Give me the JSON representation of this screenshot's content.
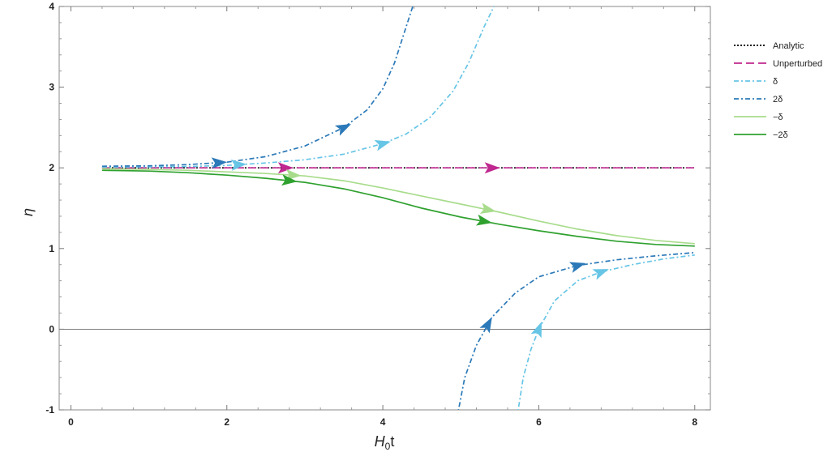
{
  "chart_data": {
    "type": "line",
    "xlabel": "H",
    "xlabel_sub": "0",
    "xlabel_tail": "t",
    "ylabel": "η",
    "xlim": [
      -0.15,
      8.2
    ],
    "ylim": [
      -1,
      4
    ],
    "x_ticks": [
      "0",
      "2",
      "4",
      "6",
      "8"
    ],
    "y_ticks": [
      "-1",
      "0",
      "1",
      "2",
      "3",
      "4"
    ],
    "x_tick_values": [
      0,
      2,
      4,
      6,
      8
    ],
    "y_tick_values": [
      -1,
      0,
      1,
      2,
      3,
      4
    ],
    "legend_position": "right",
    "reference_line_y": 0,
    "series": [
      {
        "name": "Analytic",
        "color": "#000000",
        "dash": "2,2",
        "segments": [
          [
            [
              0.4,
              2.0
            ],
            [
              8.0,
              2.0
            ]
          ]
        ],
        "arrows": []
      },
      {
        "name": "Unperturbed",
        "color": "#c0278f",
        "dash": "10,5",
        "segments": [
          [
            [
              0.4,
              2.0
            ],
            [
              8.0,
              2.0
            ]
          ]
        ],
        "arrows": [
          2.75,
          5.4
        ]
      },
      {
        "name": "δ",
        "color": "#67c5e6",
        "dash": "6,3,2,3",
        "segments": [
          [
            [
              0.4,
              2.01
            ],
            [
              1.0,
              2.012
            ],
            [
              1.5,
              2.016
            ],
            [
              2.0,
              2.03
            ],
            [
              2.5,
              2.06
            ],
            [
              3.0,
              2.1
            ],
            [
              3.5,
              2.17
            ],
            [
              4.0,
              2.3
            ],
            [
              4.3,
              2.42
            ],
            [
              4.6,
              2.62
            ],
            [
              4.9,
              2.95
            ],
            [
              5.1,
              3.3
            ],
            [
              5.3,
              3.75
            ],
            [
              5.45,
              4.05
            ]
          ],
          [
            [
              5.72,
              -1.1
            ],
            [
              5.8,
              -0.6
            ],
            [
              5.9,
              -0.25
            ],
            [
              6.0,
              0.0
            ],
            [
              6.2,
              0.35
            ],
            [
              6.5,
              0.6
            ],
            [
              6.8,
              0.71
            ],
            [
              7.2,
              0.8
            ],
            [
              7.6,
              0.87
            ],
            [
              8.0,
              0.92
            ]
          ]
        ],
        "arrows": [
          2.15,
          4.0,
          6.0,
          6.8
        ]
      },
      {
        "name": "2δ",
        "color": "#2b79b8",
        "dash": "6,3,2,3",
        "segments": [
          [
            [
              0.4,
              2.02
            ],
            [
              1.0,
              2.025
            ],
            [
              1.5,
              2.04
            ],
            [
              2.0,
              2.07
            ],
            [
              2.5,
              2.14
            ],
            [
              3.0,
              2.27
            ],
            [
              3.5,
              2.5
            ],
            [
              3.8,
              2.72
            ],
            [
              4.0,
              2.98
            ],
            [
              4.15,
              3.3
            ],
            [
              4.3,
              3.75
            ],
            [
              4.4,
              4.05
            ]
          ],
          [
            [
              4.95,
              -1.1
            ],
            [
              5.05,
              -0.6
            ],
            [
              5.2,
              -0.2
            ],
            [
              5.4,
              0.15
            ],
            [
              5.7,
              0.45
            ],
            [
              6.0,
              0.65
            ],
            [
              6.5,
              0.79
            ],
            [
              7.0,
              0.86
            ],
            [
              7.5,
              0.91
            ],
            [
              8.0,
              0.95
            ]
          ]
        ],
        "arrows": [
          1.9,
          3.5,
          5.35,
          6.5
        ]
      },
      {
        "name": "−δ",
        "color": "#a8dc8c",
        "dash": "none",
        "segments": [
          [
            [
              0.4,
              1.99
            ],
            [
              1.0,
              1.98
            ],
            [
              1.5,
              1.97
            ],
            [
              2.0,
              1.95
            ],
            [
              2.5,
              1.93
            ],
            [
              3.0,
              1.9
            ],
            [
              3.5,
              1.84
            ],
            [
              4.0,
              1.75
            ],
            [
              4.5,
              1.65
            ],
            [
              5.0,
              1.55
            ],
            [
              5.5,
              1.45
            ],
            [
              6.0,
              1.34
            ],
            [
              6.5,
              1.24
            ],
            [
              7.0,
              1.16
            ],
            [
              7.5,
              1.1
            ],
            [
              8.0,
              1.06
            ]
          ]
        ],
        "arrows": [
          2.85,
          5.35
        ]
      },
      {
        "name": "−2δ",
        "color": "#2fa12f",
        "dash": "none",
        "segments": [
          [
            [
              0.4,
              1.97
            ],
            [
              1.0,
              1.96
            ],
            [
              1.5,
              1.94
            ],
            [
              2.0,
              1.91
            ],
            [
              2.5,
              1.87
            ],
            [
              3.0,
              1.82
            ],
            [
              3.5,
              1.74
            ],
            [
              4.0,
              1.63
            ],
            [
              4.5,
              1.5
            ],
            [
              5.0,
              1.39
            ],
            [
              5.5,
              1.3
            ],
            [
              6.0,
              1.22
            ],
            [
              6.5,
              1.15
            ],
            [
              7.0,
              1.09
            ],
            [
              7.5,
              1.05
            ],
            [
              8.0,
              1.03
            ]
          ]
        ],
        "arrows": [
          2.8,
          5.3
        ]
      }
    ]
  }
}
